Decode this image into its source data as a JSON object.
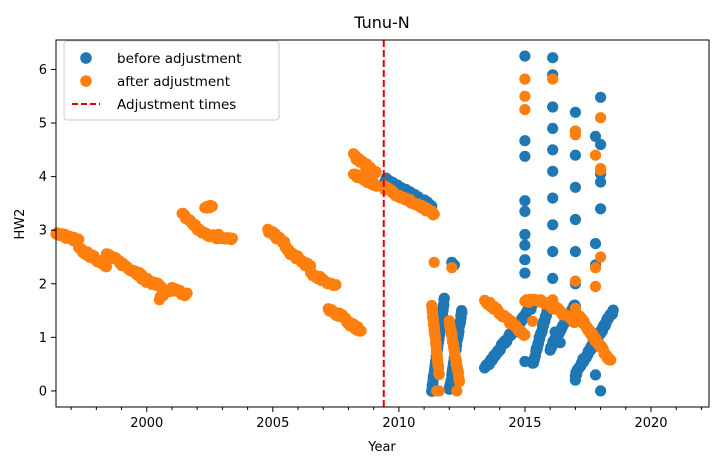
{
  "chart_data": {
    "type": "scatter",
    "title": "Tunu-N",
    "xlabel": "Year",
    "ylabel": "HW2",
    "xlim": [
      1996.4,
      2022.3
    ],
    "ylim": [
      -0.3,
      6.55
    ],
    "xticks": [
      2000,
      2005,
      2010,
      2015,
      2020
    ],
    "yticks": [
      0,
      1,
      2,
      3,
      4,
      5,
      6
    ],
    "grid": false,
    "legend_position": "top-left",
    "series": [
      {
        "name": "before adjustment",
        "color": "#1f77b4",
        "segments": [
          {
            "x": [
              2009.45,
              2011.3
            ],
            "y": [
              3.95,
              3.45
            ]
          },
          {
            "x": [
              2011.3,
              2011.8
            ],
            "y": [
              0.0,
              1.7
            ]
          },
          {
            "x": [
              2012.0,
              2012.5
            ],
            "y": [
              0.0,
              1.5
            ]
          },
          {
            "x": [
              2013.4,
              2015.3
            ],
            "y": [
              0.4,
              1.6
            ]
          },
          {
            "x": [
              2015.3,
              2016.0
            ],
            "y": [
              0.5,
              1.7
            ]
          },
          {
            "x": [
              2016.0,
              2017.0
            ],
            "y": [
              0.8,
              1.6
            ]
          },
          {
            "x": [
              2017.0,
              2018.5
            ],
            "y": [
              0.3,
              1.5
            ]
          }
        ],
        "points": [
          {
            "x": 2012.1,
            "y": 2.4
          },
          {
            "x": 2012.2,
            "y": 2.35
          },
          {
            "x": 2015.0,
            "y": 6.25
          },
          {
            "x": 2015.0,
            "y": 4.67
          },
          {
            "x": 2015.0,
            "y": 4.38
          },
          {
            "x": 2015.0,
            "y": 3.55
          },
          {
            "x": 2015.0,
            "y": 3.35
          },
          {
            "x": 2015.0,
            "y": 2.92
          },
          {
            "x": 2015.0,
            "y": 2.72
          },
          {
            "x": 2015.0,
            "y": 2.45
          },
          {
            "x": 2015.0,
            "y": 2.2
          },
          {
            "x": 2015.0,
            "y": 0.55
          },
          {
            "x": 2016.1,
            "y": 6.22
          },
          {
            "x": 2016.1,
            "y": 5.9
          },
          {
            "x": 2016.1,
            "y": 5.3
          },
          {
            "x": 2016.1,
            "y": 4.9
          },
          {
            "x": 2016.1,
            "y": 4.5
          },
          {
            "x": 2016.1,
            "y": 4.1
          },
          {
            "x": 2016.1,
            "y": 3.6
          },
          {
            "x": 2016.1,
            "y": 3.1
          },
          {
            "x": 2016.1,
            "y": 2.6
          },
          {
            "x": 2016.1,
            "y": 2.1
          },
          {
            "x": 2017.0,
            "y": 5.2
          },
          {
            "x": 2017.0,
            "y": 4.85
          },
          {
            "x": 2017.0,
            "y": 4.4
          },
          {
            "x": 2017.0,
            "y": 3.8
          },
          {
            "x": 2017.0,
            "y": 3.2
          },
          {
            "x": 2017.0,
            "y": 2.6
          },
          {
            "x": 2017.0,
            "y": 2.0
          },
          {
            "x": 2017.0,
            "y": 0.2
          },
          {
            "x": 2017.8,
            "y": 4.75
          },
          {
            "x": 2017.8,
            "y": 2.75
          },
          {
            "x": 2017.8,
            "y": 2.35
          },
          {
            "x": 2017.8,
            "y": 0.3
          },
          {
            "x": 2018.0,
            "y": 5.48
          },
          {
            "x": 2018.0,
            "y": 4.6
          },
          {
            "x": 2018.0,
            "y": 4.05
          },
          {
            "x": 2018.0,
            "y": 3.9
          },
          {
            "x": 2018.0,
            "y": 3.4
          },
          {
            "x": 2018.0,
            "y": 0.0
          },
          {
            "x": 2016.2,
            "y": 1.1
          },
          {
            "x": 2016.4,
            "y": 0.9
          },
          {
            "x": 2017.3,
            "y": 0.6
          }
        ]
      },
      {
        "name": "after adjustment",
        "color": "#ff7f0e",
        "segments": [
          {
            "x": [
              1996.4,
              1997.3
            ],
            "y": [
              2.95,
              2.8
            ]
          },
          {
            "x": [
              1997.3,
              1998.4
            ],
            "y": [
              2.65,
              2.35
            ]
          },
          {
            "x": [
              1998.4,
              1999.8
            ],
            "y": [
              2.55,
              2.15
            ]
          },
          {
            "x": [
              1999.8,
              2000.6
            ],
            "y": [
              2.1,
              1.95
            ]
          },
          {
            "x": [
              2000.5,
              2001.0
            ],
            "y": [
              1.72,
              1.9
            ]
          },
          {
            "x": [
              2001.0,
              2001.6
            ],
            "y": [
              1.9,
              1.8
            ]
          },
          {
            "x": [
              2001.4,
              2002.0
            ],
            "y": [
              3.3,
              3.05
            ]
          },
          {
            "x": [
              2002.0,
              2002.8
            ],
            "y": [
              3.0,
              2.85
            ]
          },
          {
            "x": [
              2002.3,
              2002.6
            ],
            "y": [
              3.45,
              3.45
            ]
          },
          {
            "x": [
              2002.8,
              2003.4
            ],
            "y": [
              2.9,
              2.82
            ]
          },
          {
            "x": [
              2004.8,
              2005.5
            ],
            "y": [
              3.0,
              2.75
            ]
          },
          {
            "x": [
              2005.5,
              2006.5
            ],
            "y": [
              2.65,
              2.3
            ]
          },
          {
            "x": [
              2006.5,
              2007.5
            ],
            "y": [
              2.2,
              1.95
            ]
          },
          {
            "x": [
              2007.2,
              2007.9
            ],
            "y": [
              1.5,
              1.38
            ]
          },
          {
            "x": [
              2007.9,
              2008.5
            ],
            "y": [
              1.3,
              1.12
            ]
          },
          {
            "x": [
              2008.2,
              2009.1
            ],
            "y": [
              4.4,
              4.05
            ]
          },
          {
            "x": [
              2008.2,
              2009.1
            ],
            "y": [
              4.05,
              3.85
            ]
          },
          {
            "x": [
              2009.4,
              2011.4
            ],
            "y": [
              3.8,
              3.3
            ]
          },
          {
            "x": [
              2011.3,
              2011.6
            ],
            "y": [
              1.6,
              0.3
            ]
          },
          {
            "x": [
              2012.0,
              2012.4
            ],
            "y": [
              1.3,
              0.2
            ]
          },
          {
            "x": [
              2013.4,
              2015.0
            ],
            "y": [
              1.7,
              1.05
            ]
          },
          {
            "x": [
              2015.0,
              2016.0
            ],
            "y": [
              1.7,
              1.65
            ]
          },
          {
            "x": [
              2016.0,
              2017.0
            ],
            "y": [
              1.6,
              1.3
            ]
          },
          {
            "x": [
              2017.0,
              2018.4
            ],
            "y": [
              1.5,
              0.55
            ]
          }
        ],
        "points": [
          {
            "x": 2011.4,
            "y": 2.4
          },
          {
            "x": 2011.5,
            "y": 0.0
          },
          {
            "x": 2011.6,
            "y": 0.0
          },
          {
            "x": 2012.1,
            "y": 2.3
          },
          {
            "x": 2012.3,
            "y": 0.0
          },
          {
            "x": 2015.0,
            "y": 5.82
          },
          {
            "x": 2015.0,
            "y": 5.5
          },
          {
            "x": 2015.0,
            "y": 5.25
          },
          {
            "x": 2015.3,
            "y": 1.3
          },
          {
            "x": 2016.1,
            "y": 5.82
          },
          {
            "x": 2016.1,
            "y": 1.7
          },
          {
            "x": 2017.0,
            "y": 4.85
          },
          {
            "x": 2017.0,
            "y": 4.78
          },
          {
            "x": 2017.0,
            "y": 2.05
          },
          {
            "x": 2017.8,
            "y": 4.4
          },
          {
            "x": 2017.8,
            "y": 2.3
          },
          {
            "x": 2017.8,
            "y": 1.95
          },
          {
            "x": 2018.0,
            "y": 5.1
          },
          {
            "x": 2018.0,
            "y": 4.15
          },
          {
            "x": 2018.0,
            "y": 4.12
          },
          {
            "x": 2018.0,
            "y": 2.5
          }
        ]
      }
    ],
    "adjustment_times": {
      "name": "Adjustment times",
      "color": "#e00000",
      "x": [
        2009.4
      ]
    }
  }
}
